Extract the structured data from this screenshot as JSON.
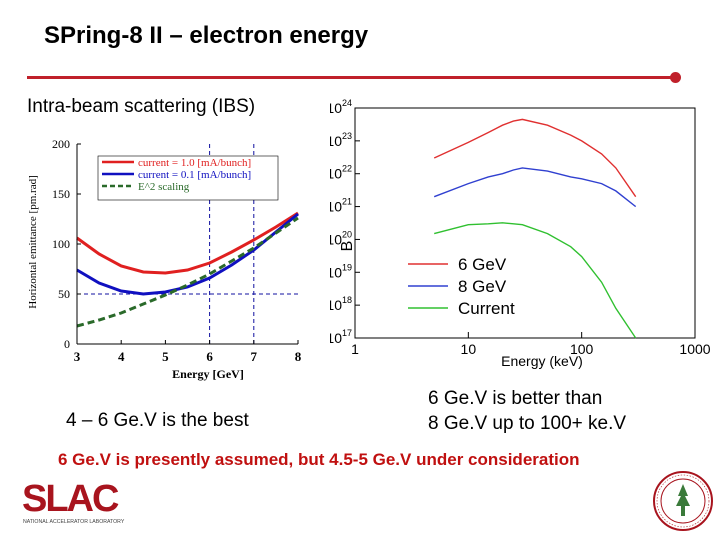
{
  "slide": {
    "title": "SPring-8 II – electron energy",
    "subtitle": "Intra-beam scattering (IBS)",
    "caption_left": "4 – 6 Ge.V is the best",
    "caption_right_line1": "6 Ge.V is better than",
    "caption_right_line2": "8 Ge.V up to 100+ ke.V",
    "note": "6 Ge.V is presently assumed, but 4.5-5 Ge.V under consideration",
    "accent_color": "#c0202a"
  },
  "logos": {
    "slac_text": "SLAC",
    "slac_subtext": "NATIONAL ACCELERATOR LABORATORY"
  },
  "chart_data": [
    {
      "type": "line",
      "xlabel": "Energy [GeV]",
      "ylabel": "Horizontal emittance [pm.rad]",
      "xlim": [
        3,
        8
      ],
      "ylim": [
        0,
        200
      ],
      "x_ticks": [
        "3",
        "4",
        "5",
        "6",
        "7",
        "8"
      ],
      "y_ticks": [
        "0",
        "50",
        "100",
        "150",
        "200"
      ],
      "x": [
        3,
        3.5,
        4,
        4.5,
        5,
        5.5,
        6,
        6.5,
        7,
        7.5,
        8
      ],
      "series": [
        {
          "name": "current = 1.0 [mA/bunch]",
          "color": "#e02020",
          "style": "solid",
          "values": [
            106,
            90,
            78,
            72,
            71,
            74,
            81,
            92,
            104,
            117,
            131
          ]
        },
        {
          "name": "current = 0.1 [mA/bunch]",
          "color": "#1010c0",
          "style": "solid",
          "values": [
            74,
            61,
            53,
            50,
            52,
            57,
            66,
            79,
            94,
            112,
            130
          ]
        },
        {
          "name": "E^2 scaling",
          "color": "#2a6a2a",
          "style": "dashed",
          "values": [
            18,
            24,
            31,
            40,
            49,
            59,
            70,
            83,
            96,
            111,
            126
          ]
        }
      ],
      "reference_lines": {
        "vertical_x": [
          6,
          7
        ],
        "horizontal_y": [
          50
        ]
      }
    },
    {
      "type": "line",
      "xlabel": "Energy (keV)",
      "ylabel": "B",
      "x_scale": "log",
      "y_scale": "log",
      "xlim": [
        1,
        1000
      ],
      "ylim": [
        1e+17,
        1e+24
      ],
      "x_ticks": [
        "1",
        "10",
        "100",
        "1000"
      ],
      "y_tick_exponents": [
        "24",
        "23",
        "22",
        "21",
        "20",
        "19",
        "18",
        "17"
      ],
      "y_tick_base": "10",
      "x": [
        5,
        10,
        15,
        20,
        25,
        30,
        50,
        80,
        100,
        150,
        200,
        300
      ],
      "series": [
        {
          "name": "6 GeV",
          "color": "#e03030",
          "values": [
            3e+22,
            9e+22,
            1.8e+23,
            3e+23,
            4e+23,
            4.5e+23,
            3e+23,
            1.5e+23,
            1e+23,
            4e+22,
            1.5e+22,
            2e+21
          ]
        },
        {
          "name": "8 GeV",
          "color": "#3040d0",
          "values": [
            2e+21,
            5e+21,
            8e+21,
            1e+22,
            1.3e+22,
            1.5e+22,
            1.2e+22,
            8e+21,
            7e+21,
            5e+21,
            3e+21,
            1e+21
          ]
        },
        {
          "name": "Current",
          "color": "#30c030",
          "values": [
            1.5e+20,
            2.8e+20,
            3e+20,
            3.2e+20,
            3e+20,
            2.8e+20,
            1.5e+20,
            6e+19,
            3e+19,
            5e+18,
            8e+17,
            6e+16
          ]
        }
      ]
    }
  ]
}
